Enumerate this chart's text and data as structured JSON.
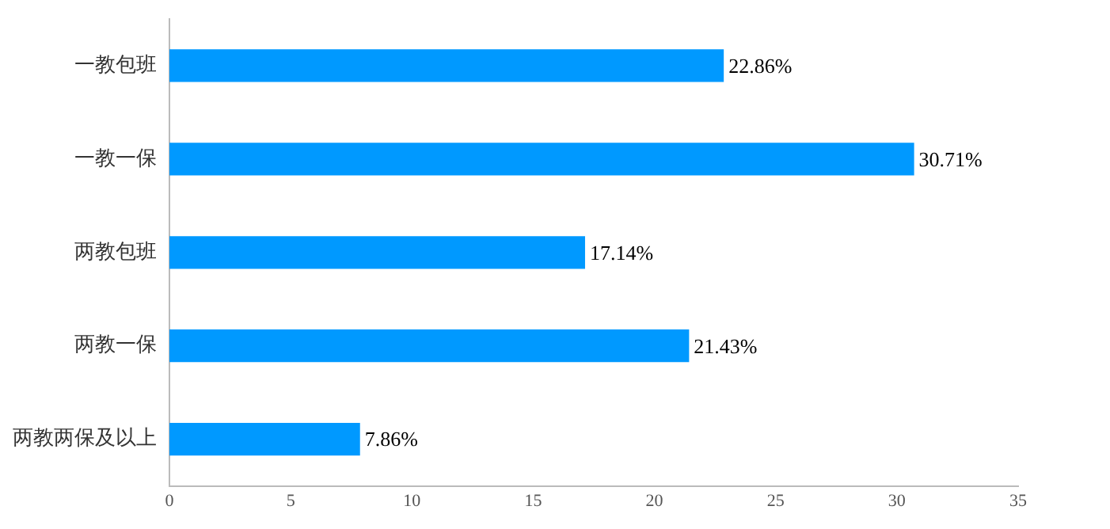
{
  "chart_data": {
    "type": "bar",
    "orientation": "horizontal",
    "categories": [
      "一教包班",
      "一教一保",
      "两教包班",
      "两教一保",
      "两教两保及以上"
    ],
    "values": [
      22.86,
      30.71,
      17.14,
      21.43,
      7.86
    ],
    "value_labels": [
      "22.86%",
      "30.71%",
      "17.14%",
      "21.43%",
      "7.86%"
    ],
    "color": "#0099ff",
    "xlim": [
      0,
      35
    ],
    "xticks": [
      0,
      5,
      10,
      15,
      20,
      25,
      30,
      35
    ],
    "grid": false,
    "legend": false
  }
}
